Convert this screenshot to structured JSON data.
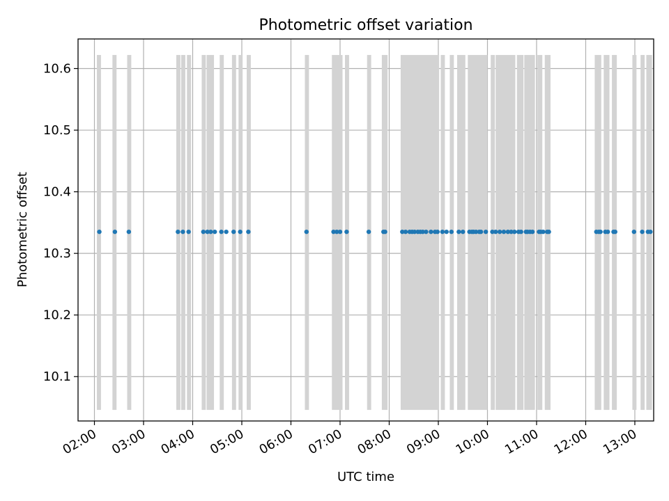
{
  "chart_data": {
    "type": "scatter",
    "title": "Photometric offset variation",
    "xlabel": "UTC time",
    "ylabel": "Photometric offset",
    "x_tick_labels": [
      "02:00",
      "03:00",
      "04:00",
      "05:00",
      "06:00",
      "07:00",
      "08:00",
      "09:00",
      "10:00",
      "11:00",
      "12:00",
      "13:00"
    ],
    "y_tick_labels": [
      "10.1",
      "10.2",
      "10.3",
      "10.4",
      "10.5",
      "10.6"
    ],
    "y_ticks": [
      10.1,
      10.2,
      10.3,
      10.4,
      10.5,
      10.6
    ],
    "xlim": [
      "01:40",
      "13:23"
    ],
    "ylim": [
      10.028,
      10.648
    ],
    "grid": true,
    "colors": {
      "points": "#1f77b4",
      "bands": "#d3d3d3"
    },
    "series": [
      {
        "y_constant": 10.335,
        "x": [
          "02:06",
          "02:25",
          "02:42",
          "03:42",
          "03:48",
          "03:55",
          "04:13",
          "04:18",
          "04:22",
          "04:27",
          "04:35",
          "04:41",
          "04:50",
          "04:58",
          "05:08",
          "06:19",
          "06:52",
          "06:56",
          "07:00",
          "07:08",
          "07:35",
          "07:53",
          "07:55",
          "08:16",
          "08:20",
          "08:25",
          "08:28",
          "08:31",
          "08:35",
          "08:38",
          "08:41",
          "08:45",
          "08:51",
          "08:56",
          "08:59",
          "09:05",
          "09:10",
          "09:16",
          "09:25",
          "09:30",
          "09:38",
          "09:41",
          "09:43",
          "09:46",
          "09:50",
          "09:52",
          "09:58",
          "10:06",
          "10:10",
          "10:15",
          "10:20",
          "10:25",
          "10:29",
          "10:33",
          "10:38",
          "10:41",
          "10:47",
          "10:49",
          "10:52",
          "10:55",
          "11:03",
          "11:05",
          "11:08",
          "11:13",
          "11:15",
          "12:13",
          "12:16",
          "12:18",
          "12:24",
          "12:27",
          "12:34",
          "12:36",
          "12:59",
          "13:09",
          "13:16",
          "13:19"
        ]
      }
    ],
    "bands": [
      {
        "x0": "02:03",
        "x1": "02:08"
      },
      {
        "x0": "02:22",
        "x1": "02:27"
      },
      {
        "x0": "02:40",
        "x1": "02:45"
      },
      {
        "x0": "03:40",
        "x1": "03:45"
      },
      {
        "x0": "03:46",
        "x1": "03:51"
      },
      {
        "x0": "03:53",
        "x1": "03:58"
      },
      {
        "x0": "04:11",
        "x1": "04:16"
      },
      {
        "x0": "04:17",
        "x1": "04:26"
      },
      {
        "x0": "04:33",
        "x1": "04:38"
      },
      {
        "x0": "04:48",
        "x1": "04:53"
      },
      {
        "x0": "04:56",
        "x1": "05:01"
      },
      {
        "x0": "05:06",
        "x1": "05:11"
      },
      {
        "x0": "06:17",
        "x1": "06:22"
      },
      {
        "x0": "06:50",
        "x1": "07:03"
      },
      {
        "x0": "07:06",
        "x1": "07:11"
      },
      {
        "x0": "07:33",
        "x1": "07:38"
      },
      {
        "x0": "07:51",
        "x1": "07:58"
      },
      {
        "x0": "08:14",
        "x1": "09:01"
      },
      {
        "x0": "09:03",
        "x1": "09:08"
      },
      {
        "x0": "09:14",
        "x1": "09:19"
      },
      {
        "x0": "09:23",
        "x1": "09:33"
      },
      {
        "x0": "09:36",
        "x1": "10:00"
      },
      {
        "x0": "10:04",
        "x1": "10:09"
      },
      {
        "x0": "10:10",
        "x1": "10:34"
      },
      {
        "x0": "10:36",
        "x1": "10:44"
      },
      {
        "x0": "10:45",
        "x1": "10:58"
      },
      {
        "x0": "11:01",
        "x1": "11:07"
      },
      {
        "x0": "11:10",
        "x1": "11:17"
      },
      {
        "x0": "12:11",
        "x1": "12:19"
      },
      {
        "x0": "12:22",
        "x1": "12:29"
      },
      {
        "x0": "12:32",
        "x1": "12:38"
      },
      {
        "x0": "12:57",
        "x1": "13:02"
      },
      {
        "x0": "13:07",
        "x1": "13:12"
      },
      {
        "x0": "13:14",
        "x1": "13:21"
      }
    ],
    "band_y_range": [
      10.046,
      10.622
    ]
  }
}
